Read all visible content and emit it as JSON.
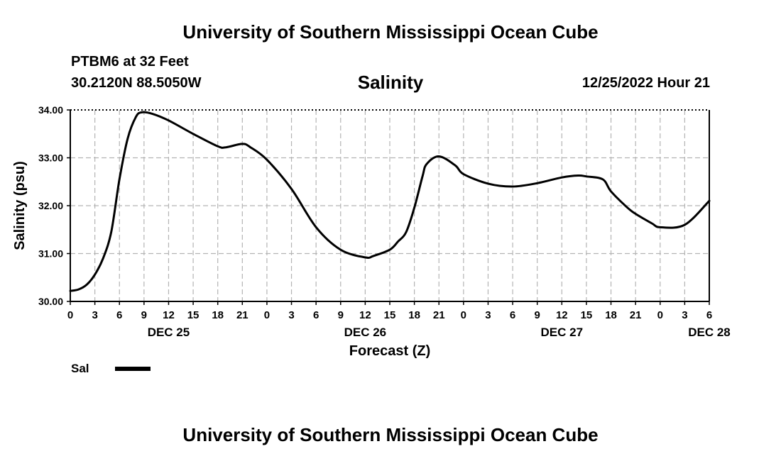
{
  "header": {
    "title": "University of Southern Mississippi Ocean Cube",
    "station": "PTBM6 at 32 Feet",
    "coords": "30.2120N  88.5050W",
    "chart_title": "Salinity",
    "timestamp": "12/25/2022 Hour 21"
  },
  "footer": {
    "title": "University of Southern Mississippi Ocean Cube"
  },
  "legend": {
    "label": "Sal",
    "color": "#000000"
  },
  "chart_data": {
    "type": "line",
    "title": "Salinity",
    "xlabel": "Forecast (Z)",
    "ylabel": "Salinity (psu)",
    "ylim": [
      30.0,
      34.0
    ],
    "xlim": [
      0,
      78
    ],
    "x_unit": "hours from DEC 25 00Z",
    "grid": true,
    "legend_position": "bottom-left",
    "yticks": [
      "30.00",
      "31.00",
      "32.00",
      "33.00",
      "34.00"
    ],
    "xtick_labels": [
      "0",
      "3",
      "6",
      "9",
      "12",
      "15",
      "18",
      "21",
      "0",
      "3",
      "6",
      "9",
      "12",
      "15",
      "18",
      "21",
      "0",
      "3",
      "6",
      "9",
      "12",
      "15",
      "18",
      "21",
      "0",
      "3",
      "6"
    ],
    "date_labels": [
      {
        "label": "DEC 25",
        "hour": 12
      },
      {
        "label": "DEC 26",
        "hour": 36
      },
      {
        "label": "DEC 27",
        "hour": 60
      },
      {
        "label": "DEC 28",
        "hour": 78
      }
    ],
    "series": [
      {
        "name": "Sal",
        "color": "#000000",
        "x": [
          0,
          1,
          2,
          3,
          4,
          5,
          6,
          7,
          8,
          8.7,
          10,
          12,
          15,
          18,
          19,
          21,
          22,
          24,
          27,
          30,
          33,
          36,
          37,
          39,
          40,
          41,
          42,
          43,
          43.5,
          45,
          47,
          48,
          51,
          54,
          57,
          60,
          62,
          63,
          65,
          66,
          68,
          69,
          71,
          72,
          75,
          78
        ],
        "values": [
          30.22,
          30.25,
          30.35,
          30.56,
          30.9,
          31.45,
          32.55,
          33.4,
          33.85,
          33.95,
          33.92,
          33.78,
          33.5,
          33.24,
          33.22,
          33.29,
          33.22,
          32.96,
          32.35,
          31.55,
          31.08,
          30.92,
          30.95,
          31.08,
          31.25,
          31.45,
          31.96,
          32.62,
          32.87,
          33.03,
          32.84,
          32.66,
          32.46,
          32.4,
          32.47,
          32.59,
          32.63,
          32.61,
          32.55,
          32.3,
          31.96,
          31.83,
          31.63,
          31.55,
          31.6,
          32.1
        ]
      }
    ]
  }
}
